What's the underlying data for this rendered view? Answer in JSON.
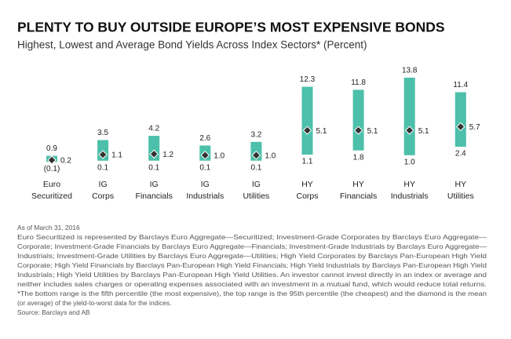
{
  "chart_data": {
    "type": "range",
    "title": "PLENTY TO BUY OUTSIDE EUROPE’S MOST EXPENSIVE BONDS",
    "subtitle": "Highest, Lowest and Average Bond Yields Across Index Sectors* (Percent)",
    "categories": [
      [
        "Euro",
        "Securitized"
      ],
      [
        "IG",
        "Corps"
      ],
      [
        "IG",
        "Financials"
      ],
      [
        "IG",
        "Industrials"
      ],
      [
        "IG",
        "Utilities"
      ],
      [
        "HY",
        "Corps"
      ],
      [
        "HY",
        "Financials"
      ],
      [
        "HY",
        "Industrials"
      ],
      [
        "HY",
        "Utilities"
      ]
    ],
    "color": "#4cc0aa",
    "marker_color": "#333333",
    "high": {
      "values": [
        0.9,
        3.5,
        4.2,
        2.6,
        3.2,
        12.3,
        11.8,
        13.8,
        11.4
      ]
    },
    "low": {
      "values": [
        -0.1,
        0.1,
        0.1,
        0.1,
        0.1,
        1.1,
        1.8,
        1.0,
        2.4
      ],
      "value_labels": [
        "(0.1)",
        "0.1",
        "0.1",
        "0.1",
        "0.1",
        "1.1",
        "1.8",
        "1.0",
        "2.4"
      ]
    },
    "mean": {
      "values": [
        0.2,
        1.1,
        1.2,
        1.0,
        1.0,
        5.1,
        5.1,
        5.1,
        5.7
      ],
      "value_labels": [
        "0.2",
        "1.1",
        "1.2",
        "1.0",
        "1.0",
        "5.1",
        "5.1",
        "5.1",
        "5.7"
      ]
    },
    "footnotes": [
      "As of March 31, 2016",
      "Euro Securitized is represented by Barclays Euro Aggregate—Securitized; Investment-Grade Corporates by Barclays Euro Aggregate—",
      "Corporate; Investment-Grade Financials by Barclays Euro Aggregate—Financials; Investment-Grade Industrials by Barclays Euro Aggregate—",
      "Industrials; Investment-Grade Utilities by Barclays Euro Aggregate—Utilities; High Yield Corporates by Barclays Pan-European High Yield",
      "Corporate; High Yield Financials by Barclays Pan-European High Yield Financials; High Yield Industrials by Barclays Pan-European High Yield",
      "Industrials; High Yield Utilities by Barclays Pan-European High Yield Utilities. An investor cannot invest directly in an index or average and",
      "neither includes sales charges or operating expenses associated with an investment in a mutual fund, which would reduce total returns.",
      "*The bottom range is the fifth percentile (the most expensive), the top range is the 95th percentile (the cheapest) and the diamond is the mean",
      "(or average) of the yield-to-worst data for the indices.",
      "Source: Barclays and AB"
    ]
  }
}
